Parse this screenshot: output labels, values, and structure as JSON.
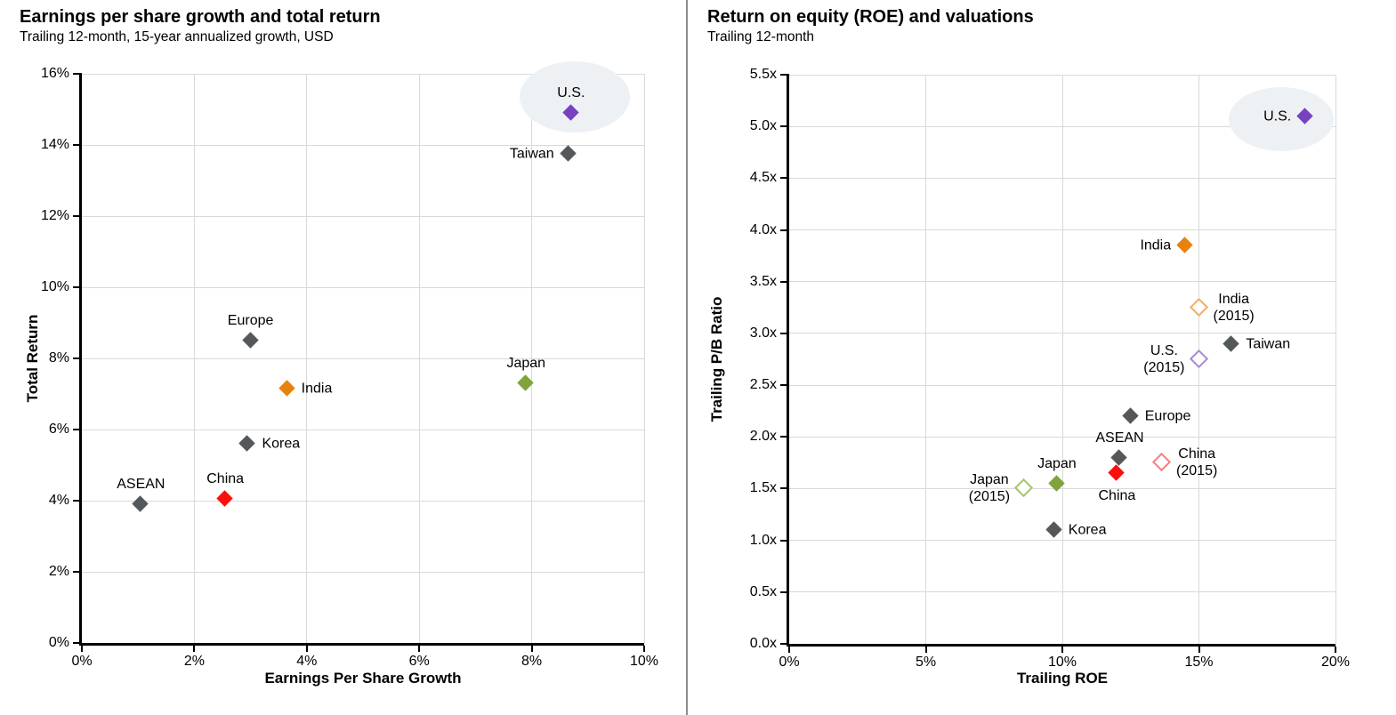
{
  "page": {
    "background": "#ffffff",
    "divider_color": "#8c8c8c"
  },
  "colors": {
    "gray": "#54585a",
    "purple": "#7642be",
    "orange": "#e8820e",
    "olive": "#7ea43b",
    "red": "#fa0f0c",
    "purple_hollow": "#a78bd9",
    "orange_hollow": "#f4ae66",
    "olive_hollow": "#a9c36c",
    "red_hollow": "#f77f7f",
    "halo": "#eef1f4",
    "gridline": "#d9d9d9",
    "axis": "#000000"
  },
  "chart_data": [
    {
      "type": "scatter",
      "title": "Earnings per share growth and total return",
      "subtitle": "Trailing 12-month, 15-year annualized growth, USD",
      "xlabel": "Earnings Per Share Growth",
      "ylabel": "Total Return",
      "xlim": [
        0,
        10
      ],
      "ylim": [
        0,
        16
      ],
      "grid": true,
      "x_ticks": [
        {
          "v": 0,
          "label": "0%"
        },
        {
          "v": 2,
          "label": "2%"
        },
        {
          "v": 4,
          "label": "4%"
        },
        {
          "v": 6,
          "label": "6%"
        },
        {
          "v": 8,
          "label": "8%"
        },
        {
          "v": 10,
          "label": "10%"
        }
      ],
      "y_ticks": [
        {
          "v": 0,
          "label": "0%"
        },
        {
          "v": 2,
          "label": "2%"
        },
        {
          "v": 4,
          "label": "4%"
        },
        {
          "v": 6,
          "label": "6%"
        },
        {
          "v": 8,
          "label": "8%"
        },
        {
          "v": 10,
          "label": "10%"
        },
        {
          "v": 12,
          "label": "12%"
        },
        {
          "v": 14,
          "label": "14%"
        },
        {
          "v": 16,
          "label": "16%"
        }
      ],
      "points": [
        {
          "label": "U.S.",
          "x": 8.7,
          "y": 14.9,
          "color": "purple",
          "fill": "solid",
          "marker": "diamond",
          "label_pos": "above",
          "highlight": true
        },
        {
          "label": "Taiwan",
          "x": 8.65,
          "y": 13.75,
          "color": "gray",
          "fill": "solid",
          "marker": "diamond",
          "label_pos": "left"
        },
        {
          "label": "Europe",
          "x": 3.0,
          "y": 8.5,
          "color": "gray",
          "fill": "solid",
          "marker": "diamond",
          "label_pos": "above"
        },
        {
          "label": "India",
          "x": 3.65,
          "y": 7.15,
          "color": "orange",
          "fill": "solid",
          "marker": "diamond",
          "label_pos": "right"
        },
        {
          "label": "Japan",
          "x": 7.9,
          "y": 7.3,
          "color": "olive",
          "fill": "solid",
          "marker": "diamond",
          "label_pos": "above"
        },
        {
          "label": "Korea",
          "x": 2.95,
          "y": 5.6,
          "color": "gray",
          "fill": "solid",
          "marker": "diamond",
          "label_pos": "right"
        },
        {
          "label": "China",
          "x": 2.55,
          "y": 4.05,
          "color": "red",
          "fill": "solid",
          "marker": "diamond",
          "label_pos": "above"
        },
        {
          "label": "ASEAN",
          "x": 1.05,
          "y": 3.9,
          "color": "gray",
          "fill": "solid",
          "marker": "diamond",
          "label_pos": "above"
        }
      ]
    },
    {
      "type": "scatter",
      "title": "Return on equity (ROE) and valuations",
      "subtitle": "Trailing 12-month",
      "xlabel": "Trailing ROE",
      "ylabel": "Trailing P/B Ratio",
      "xlim": [
        0,
        20
      ],
      "ylim": [
        0,
        5.5
      ],
      "grid": true,
      "x_ticks": [
        {
          "v": 0,
          "label": "0%"
        },
        {
          "v": 5,
          "label": "5%"
        },
        {
          "v": 10,
          "label": "10%"
        },
        {
          "v": 15,
          "label": "15%"
        },
        {
          "v": 20,
          "label": "20%"
        }
      ],
      "y_ticks": [
        {
          "v": 0,
          "label": "0.0x"
        },
        {
          "v": 0.5,
          "label": "0.5x"
        },
        {
          "v": 1,
          "label": "1.0x"
        },
        {
          "v": 1.5,
          "label": "1.5x"
        },
        {
          "v": 2,
          "label": "2.0x"
        },
        {
          "v": 2.5,
          "label": "2.5x"
        },
        {
          "v": 3,
          "label": "3.0x"
        },
        {
          "v": 3.5,
          "label": "3.5x"
        },
        {
          "v": 4,
          "label": "4.0x"
        },
        {
          "v": 4.5,
          "label": "4.5x"
        },
        {
          "v": 5,
          "label": "5.0x"
        },
        {
          "v": 5.5,
          "label": "5.5x"
        }
      ],
      "points": [
        {
          "label": "U.S.",
          "x": 18.9,
          "y": 5.1,
          "color": "purple",
          "fill": "solid",
          "marker": "diamond",
          "label_pos": "left",
          "highlight": true
        },
        {
          "label": "India",
          "x": 14.5,
          "y": 3.85,
          "color": "orange",
          "fill": "solid",
          "marker": "diamond",
          "label_pos": "left"
        },
        {
          "label": "India\n(2015)",
          "x": 15.0,
          "y": 3.25,
          "color": "orange",
          "fill": "hollow",
          "marker": "diamond",
          "label_pos": "right"
        },
        {
          "label": "Taiwan",
          "x": 16.2,
          "y": 2.9,
          "color": "gray",
          "fill": "solid",
          "marker": "diamond",
          "label_pos": "right"
        },
        {
          "label": "U.S.\n(2015)",
          "x": 15.0,
          "y": 2.75,
          "color": "purple",
          "fill": "hollow",
          "marker": "diamond",
          "label_pos": "left"
        },
        {
          "label": "Europe",
          "x": 12.5,
          "y": 2.2,
          "color": "gray",
          "fill": "solid",
          "marker": "diamond",
          "label_pos": "right"
        },
        {
          "label": "ASEAN",
          "x": 12.1,
          "y": 1.8,
          "color": "gray",
          "fill": "solid",
          "marker": "diamond",
          "label_pos": "above"
        },
        {
          "label": "China\n(2015)",
          "x": 13.65,
          "y": 1.75,
          "color": "red",
          "fill": "hollow",
          "marker": "diamond",
          "label_pos": "right"
        },
        {
          "label": "China",
          "x": 12.0,
          "y": 1.65,
          "color": "red",
          "fill": "solid",
          "marker": "diamond",
          "label_pos": "below"
        },
        {
          "label": "Japan",
          "x": 9.8,
          "y": 1.55,
          "color": "olive",
          "fill": "solid",
          "marker": "diamond",
          "label_pos": "above"
        },
        {
          "label": "Japan\n(2015)",
          "x": 8.6,
          "y": 1.5,
          "color": "olive",
          "fill": "hollow",
          "marker": "diamond",
          "label_pos": "left"
        },
        {
          "label": "Korea",
          "x": 9.7,
          "y": 1.1,
          "color": "gray",
          "fill": "solid",
          "marker": "diamond",
          "label_pos": "right"
        }
      ]
    }
  ]
}
